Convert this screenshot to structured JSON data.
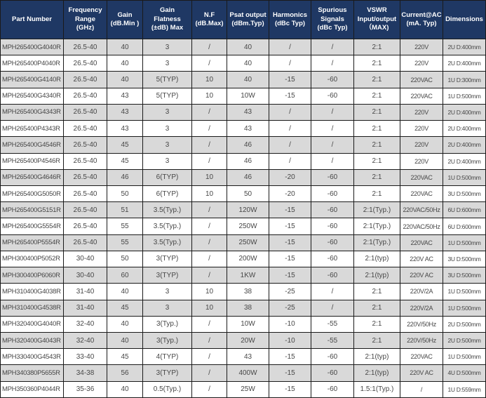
{
  "colors": {
    "header_bg": "#1F3864",
    "header_text": "#FFFFFF",
    "row_bg": "#FFFFFF",
    "row_alt_bg": "#D9D9D9",
    "border": "#1A1A1A",
    "cell_text": "#474747"
  },
  "table": {
    "columns": [
      {
        "id": "part-number",
        "label": "Part Number"
      },
      {
        "id": "frequency-range",
        "label": "Frequency\nRange\n(GHz)"
      },
      {
        "id": "gain",
        "label": "Gain\n(dB.Min )"
      },
      {
        "id": "gain-flatness",
        "label": "Gain\nFlatness\n(±dB) Max"
      },
      {
        "id": "nf",
        "label": "N.F\n(dB.Max)"
      },
      {
        "id": "psat-output",
        "label": "Psat output\n(dBm.Typ)"
      },
      {
        "id": "harmonics",
        "label": "Harmonics\n(dBc  Typ)"
      },
      {
        "id": "spurious-signals",
        "label": "Spurious\nSignals\n(dBc  Typ)"
      },
      {
        "id": "vswr",
        "label": "VSWR\nInput/output\n（MAX)"
      },
      {
        "id": "current-ac",
        "label": "Current@AC\n(mA. Typ)"
      },
      {
        "id": "dimensions",
        "label": "Dimensions"
      }
    ],
    "rows": [
      [
        "MPH265400G4040R",
        "26.5-40",
        "40",
        "3",
        "/",
        "40",
        "/",
        "/",
        "2:1",
        "220V",
        "2U D:400mm"
      ],
      [
        "MPH265400P4040R",
        "26.5-40",
        "40",
        "3",
        "/",
        "40",
        "/",
        "/",
        "2:1",
        "220V",
        "2U D:400mm"
      ],
      [
        "MPH265400G4140R",
        "26.5-40",
        "40",
        "5(TYP)",
        "10",
        "40",
        "-15",
        "-60",
        "2:1",
        "220VAC",
        "1U D:300mm"
      ],
      [
        "MPH265400G4340R",
        "26.5-40",
        "43",
        "5(TYP)",
        "10",
        "10W",
        "-15",
        "-60",
        "2:1",
        "220VAC",
        "1U D:500mm"
      ],
      [
        "MPH265400G4343R",
        "26.5-40",
        "43",
        "3",
        "/",
        "43",
        "/",
        "/",
        "2:1",
        "220V",
        "2U D:400mm"
      ],
      [
        "MPH265400P4343R",
        "26.5-40",
        "43",
        "3",
        "/",
        "43",
        "/",
        "/",
        "2:1",
        "220V",
        "2U D:400mm"
      ],
      [
        "MPH265400G4546R",
        "26.5-40",
        "45",
        "3",
        "/",
        "46",
        "/",
        "/",
        "2:1",
        "220V",
        "2U D:400mm"
      ],
      [
        "MPH265400P4546R",
        "26.5-40",
        "45",
        "3",
        "/",
        "46",
        "/",
        "/",
        "2:1",
        "220V",
        "2U D:400mm"
      ],
      [
        "MPH265400G4646R",
        "26.5-40",
        "46",
        "6(TYP)",
        "10",
        "46",
        "-20",
        "-60",
        "2:1",
        "220VAC",
        "1U D:500mm"
      ],
      [
        "MPH265400G5050R",
        "26.5-40",
        "50",
        "6(TYP)",
        "10",
        "50",
        "-20",
        "-60",
        "2:1",
        "220VAC",
        "3U D:500mm"
      ],
      [
        "MPH265400G5151R",
        "26.5-40",
        "51",
        "3.5(Typ.)",
        "/",
        "120W",
        "-15",
        "-60",
        "2:1(Typ.)",
        "220VAC/50Hz",
        "6U D:600mm"
      ],
      [
        "MPH265400G5554R",
        "26.5-40",
        "55",
        "3.5(Typ.)",
        "/",
        "250W",
        "-15",
        "-60",
        "2:1(Typ.)",
        "220VAC/50Hz",
        "6U D:600mm"
      ],
      [
        "MPH265400P5554R",
        "26.5-40",
        "55",
        "3.5(Typ.)",
        "/",
        "250W",
        "-15",
        "-60",
        "2:1(Typ.)",
        "220VAC",
        "1U D:500mm"
      ],
      [
        "MPH300400P5052R",
        "30-40",
        "50",
        "3(TYP)",
        "/",
        "200W",
        "-15",
        "-60",
        "2:1(typ)",
        "220V AC",
        "3U D:500mm"
      ],
      [
        "MPH300400P6060R",
        "30-40",
        "60",
        "3(TYP)",
        "/",
        "1KW",
        "-15",
        "-60",
        "2:1(typ)",
        "220V AC",
        "3U D:500mm"
      ],
      [
        "MPH310400G4038R",
        "31-40",
        "40",
        "3",
        "10",
        "38",
        "-25",
        "/",
        "2:1",
        "220V/2A",
        "1U D:500mm"
      ],
      [
        "MPH310400G4538R",
        "31-40",
        "45",
        "3",
        "10",
        "38",
        "-25",
        "/",
        "2:1",
        "220V/2A",
        "1U D:500mm"
      ],
      [
        "MPH320400G4040R",
        "32-40",
        "40",
        "3(Typ.)",
        "/",
        "10W",
        "-10",
        "-55",
        "2:1",
        "220V/50Hz",
        "2U D:500mm"
      ],
      [
        "MPH320400G4043R",
        "32-40",
        "40",
        "3(Typ.)",
        "/",
        "20W",
        "-10",
        "-55",
        "2:1",
        "220V/50Hz",
        "2U D:500mm"
      ],
      [
        "MPH330400G4543R",
        "33-40",
        "45",
        "4(TYP)",
        "/",
        "43",
        "-15",
        "-60",
        "2:1(typ)",
        "220VAC",
        "1U D:500mm"
      ],
      [
        "MPH340380P5655R",
        "34-38",
        "56",
        "3(TYP)",
        "/",
        "400W",
        "-15",
        "-60",
        "2:1(typ)",
        "220V AC",
        "4U D:500mm"
      ],
      [
        "MPH350360P4044R",
        "35-36",
        "40",
        "0.5(Typ.)",
        "/",
        "25W",
        "-15",
        "-60",
        "1.5:1(Typ.)",
        "/",
        "1U D:559mm"
      ]
    ]
  }
}
